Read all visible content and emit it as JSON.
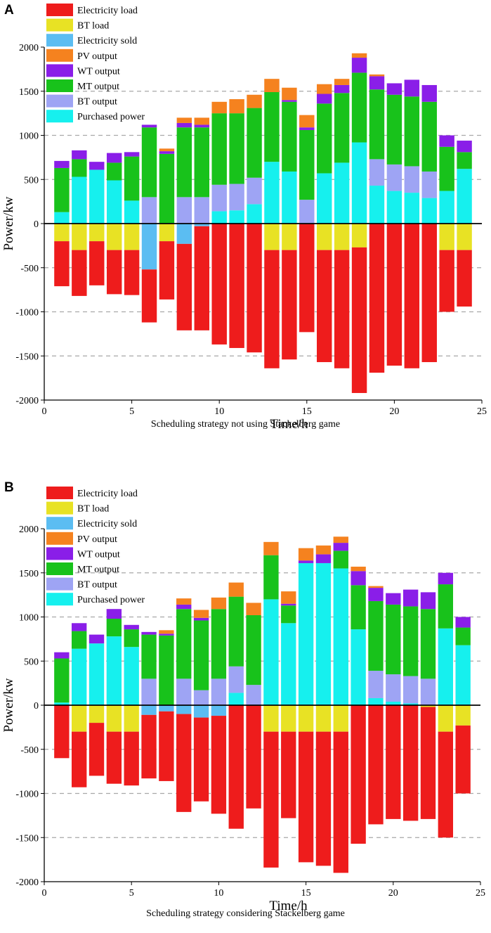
{
  "chart_data": [
    {
      "panel_label": "A",
      "type": "bar",
      "stacked": true,
      "caption": "Scheduling strategy not using Stackelberg game",
      "xlabel": "Time/h",
      "ylabel": "Power/kw",
      "xlim": [
        0,
        25
      ],
      "ylim": [
        -2000,
        2000
      ],
      "xticks": [
        0,
        5,
        10,
        15,
        20,
        25
      ],
      "yticks": [
        -2000,
        -1500,
        -1000,
        -500,
        0,
        500,
        1000,
        1500,
        2000
      ],
      "grid": "dashed horizontal at every 500",
      "legend_position": "top-left",
      "categories": [
        1,
        2,
        3,
        4,
        5,
        6,
        7,
        8,
        9,
        10,
        11,
        12,
        13,
        14,
        15,
        16,
        17,
        18,
        19,
        20,
        21,
        22,
        23,
        24
      ],
      "series": [
        {
          "name": "Electricity load",
          "color": "#ee1c1c",
          "values": [
            -510,
            -520,
            -500,
            -500,
            -510,
            -600,
            -660,
            -980,
            -1180,
            -1370,
            -1410,
            -1460,
            -1340,
            -1240,
            -1230,
            -1270,
            -1340,
            -1650,
            -1690,
            -1610,
            -1640,
            -1570,
            -700,
            -640
          ]
        },
        {
          "name": "BT load",
          "color": "#e8e224",
          "values": [
            -200,
            -300,
            -200,
            -300,
            -300,
            0,
            -200,
            0,
            0,
            0,
            0,
            0,
            -300,
            -300,
            0,
            -300,
            -300,
            -270,
            0,
            0,
            0,
            0,
            -300,
            -300
          ]
        },
        {
          "name": "Electricity sold",
          "color": "#5bbdf2",
          "values": [
            0,
            0,
            0,
            0,
            0,
            -520,
            0,
            -230,
            -30,
            0,
            0,
            0,
            0,
            0,
            0,
            0,
            0,
            0,
            0,
            0,
            0,
            0,
            0,
            0
          ]
        },
        {
          "name": "Purchased power",
          "color": "#16f0ee",
          "values": [
            130,
            530,
            610,
            490,
            260,
            0,
            0,
            0,
            0,
            140,
            150,
            220,
            700,
            590,
            0,
            570,
            690,
            920,
            430,
            370,
            350,
            290,
            370,
            620
          ]
        },
        {
          "name": "BT output",
          "color": "#9ea4f4",
          "values": [
            0,
            0,
            0,
            0,
            0,
            300,
            0,
            300,
            300,
            300,
            300,
            300,
            0,
            0,
            270,
            0,
            0,
            0,
            300,
            300,
            300,
            300,
            0,
            0
          ]
        },
        {
          "name": "MT output",
          "color": "#18c21b",
          "values": [
            500,
            200,
            0,
            200,
            500,
            790,
            790,
            790,
            790,
            810,
            800,
            790,
            790,
            790,
            790,
            790,
            790,
            790,
            790,
            790,
            790,
            790,
            500,
            190
          ]
        },
        {
          "name": "WT output",
          "color": "#8a1ee8",
          "values": [
            80,
            100,
            90,
            110,
            50,
            30,
            30,
            50,
            30,
            0,
            0,
            0,
            0,
            20,
            30,
            110,
            90,
            170,
            150,
            130,
            190,
            190,
            130,
            130
          ]
        },
        {
          "name": "PV output",
          "color": "#f5821f",
          "values": [
            0,
            0,
            0,
            0,
            0,
            0,
            30,
            60,
            80,
            130,
            160,
            150,
            150,
            140,
            140,
            110,
            70,
            50,
            20,
            0,
            0,
            0,
            0,
            0
          ]
        }
      ]
    },
    {
      "panel_label": "B",
      "type": "bar",
      "stacked": true,
      "caption": "Scheduling strategy considering Stackelberg game",
      "xlabel": "Time/h",
      "ylabel": "Power/kw",
      "xlim": [
        0,
        25
      ],
      "ylim": [
        -2000,
        2000
      ],
      "xticks": [
        0,
        5,
        10,
        15,
        20,
        25
      ],
      "yticks": [
        -2000,
        -1500,
        -1000,
        -500,
        0,
        500,
        1000,
        1500,
        2000
      ],
      "grid": "dashed horizontal at every 500",
      "legend_position": "top-left",
      "categories": [
        1,
        2,
        3,
        4,
        5,
        6,
        7,
        8,
        9,
        10,
        11,
        12,
        13,
        14,
        15,
        16,
        17,
        18,
        19,
        20,
        21,
        22,
        23,
        24
      ],
      "series": [
        {
          "name": "Electricity load",
          "color": "#ee1c1c",
          "values": [
            -600,
            -630,
            -600,
            -590,
            -610,
            -720,
            -790,
            -1110,
            -950,
            -1110,
            -1400,
            -1170,
            -1540,
            -980,
            -1480,
            -1520,
            -1600,
            -1570,
            -1350,
            -1290,
            -1310,
            -1270,
            -1200,
            -770
          ]
        },
        {
          "name": "BT load",
          "color": "#e8e224",
          "values": [
            0,
            -300,
            -200,
            -300,
            -300,
            0,
            0,
            0,
            0,
            0,
            0,
            0,
            -300,
            -300,
            -300,
            -300,
            -300,
            0,
            0,
            0,
            0,
            -20,
            -300,
            -230
          ]
        },
        {
          "name": "Electricity sold",
          "color": "#5bbdf2",
          "values": [
            0,
            0,
            0,
            0,
            0,
            -110,
            -70,
            -100,
            -140,
            -120,
            0,
            0,
            0,
            0,
            0,
            0,
            0,
            0,
            0,
            0,
            0,
            0,
            0,
            0
          ]
        },
        {
          "name": "Purchased power",
          "color": "#16f0ee",
          "values": [
            30,
            640,
            700,
            780,
            660,
            0,
            0,
            0,
            0,
            0,
            140,
            0,
            1200,
            930,
            1610,
            1610,
            1550,
            860,
            80,
            40,
            20,
            0,
            870,
            680
          ]
        },
        {
          "name": "BT output",
          "color": "#9ea4f4",
          "values": [
            0,
            0,
            0,
            0,
            0,
            300,
            0,
            300,
            170,
            300,
            300,
            230,
            0,
            0,
            0,
            0,
            0,
            0,
            310,
            310,
            310,
            300,
            0,
            0
          ]
        },
        {
          "name": "MT output",
          "color": "#18c21b",
          "values": [
            500,
            200,
            0,
            200,
            200,
            500,
            790,
            790,
            790,
            790,
            790,
            790,
            500,
            200,
            0,
            0,
            200,
            500,
            790,
            790,
            790,
            790,
            500,
            200
          ]
        },
        {
          "name": "WT output",
          "color": "#8a1ee8",
          "values": [
            70,
            90,
            100,
            110,
            50,
            30,
            20,
            50,
            30,
            0,
            0,
            0,
            0,
            20,
            30,
            100,
            90,
            160,
            150,
            130,
            190,
            190,
            130,
            120
          ]
        },
        {
          "name": "PV output",
          "color": "#f5821f",
          "values": [
            0,
            0,
            0,
            0,
            0,
            0,
            40,
            70,
            90,
            130,
            160,
            140,
            150,
            140,
            140,
            100,
            70,
            50,
            20,
            0,
            0,
            0,
            0,
            0
          ]
        }
      ]
    }
  ]
}
